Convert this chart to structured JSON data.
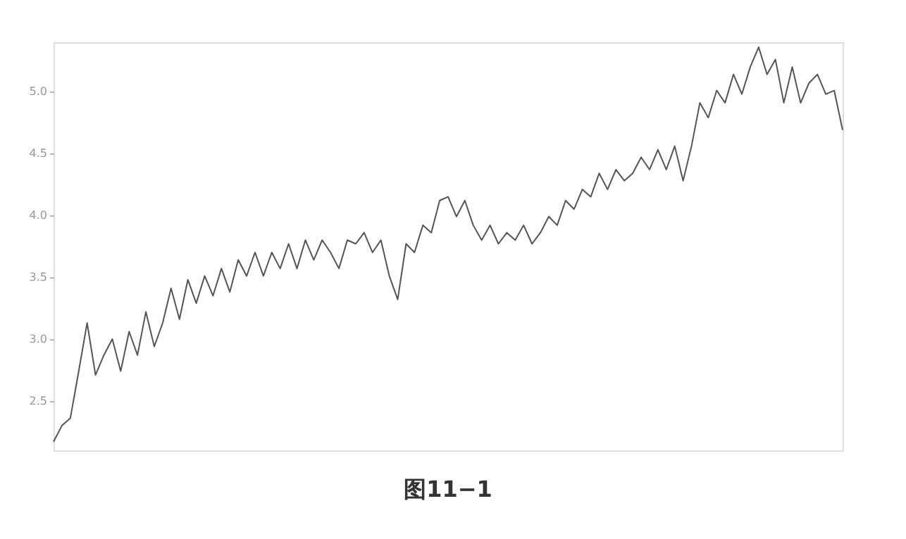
{
  "chart_data": {
    "type": "line",
    "color": "#555555",
    "categories": [
      null,
      null,
      null,
      null,
      null,
      null,
      null,
      null,
      null,
      null,
      null,
      null,
      null,
      null,
      null,
      null,
      null,
      null,
      null,
      null,
      null,
      null,
      null,
      null,
      null,
      null,
      null,
      null,
      null,
      null,
      null,
      null,
      null,
      null,
      null,
      null,
      null,
      null,
      null,
      null,
      null,
      null,
      null,
      null,
      null,
      null,
      null,
      null,
      null,
      null,
      null,
      null,
      null,
      null,
      null,
      null,
      null,
      null,
      null,
      null,
      null,
      null,
      null,
      null,
      null,
      null,
      null,
      null,
      null,
      null,
      null,
      null,
      null,
      null,
      null,
      null,
      null,
      null,
      null,
      null,
      null,
      null,
      null,
      null,
      null,
      null,
      null,
      null,
      null,
      null,
      null,
      null,
      null,
      null,
      null
    ],
    "values": [
      2.17,
      2.3,
      2.36,
      2.74,
      3.13,
      2.71,
      2.87,
      3.0,
      2.74,
      3.06,
      2.87,
      3.22,
      2.94,
      3.13,
      3.41,
      3.16,
      3.48,
      3.29,
      3.51,
      3.35,
      3.57,
      3.38,
      3.64,
      3.51,
      3.7,
      3.51,
      3.7,
      3.57,
      3.77,
      3.57,
      3.8,
      3.64,
      3.8,
      3.7,
      3.57,
      3.8,
      3.77,
      3.86,
      3.7,
      3.8,
      3.51,
      3.32,
      3.77,
      3.7,
      3.92,
      3.86,
      4.12,
      4.15,
      3.99,
      4.12,
      3.92,
      3.8,
      3.92,
      3.77,
      3.86,
      3.8,
      3.92,
      3.77,
      3.86,
      3.99,
      3.92,
      4.12,
      4.05,
      4.21,
      4.15,
      4.34,
      4.21,
      4.37,
      4.28,
      4.34,
      4.47,
      4.37,
      4.53,
      4.37,
      4.56,
      4.28,
      4.56,
      4.91,
      4.79,
      5.01,
      4.91,
      5.14,
      4.98,
      5.2,
      5.36,
      5.14,
      5.26,
      4.91,
      5.2,
      4.91,
      5.07,
      5.14,
      4.98,
      5.01,
      4.69
    ],
    "ylim": [
      2.1,
      5.4
    ],
    "yticks": [
      2.5,
      {
        "value": 3,
        "label": "3.0"
      },
      3.5,
      {
        "value": 4,
        "label": "4.0"
      },
      4.5,
      {
        "value": 5,
        "label": "5.0"
      }
    ],
    "annotations": [
      "图11−1"
    ]
  }
}
